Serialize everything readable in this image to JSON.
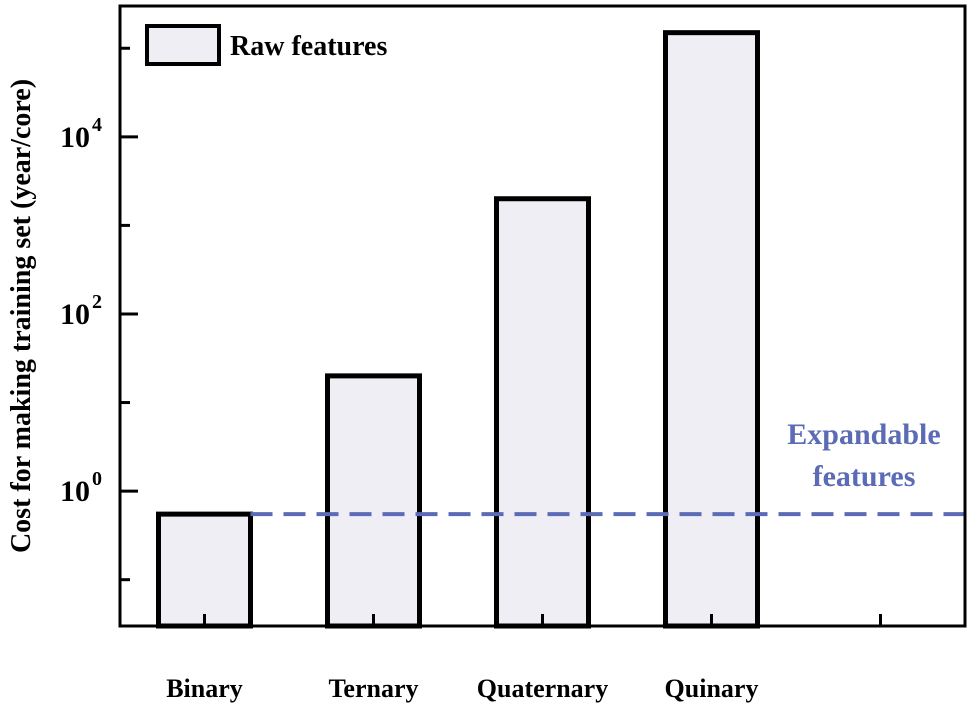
{
  "chart_data": {
    "type": "bar",
    "ylabel": "Cost for making training set (year/core)",
    "xlabel": "",
    "yscale": "log",
    "ylim": [
      0.03,
      300000
    ],
    "categories": [
      "Binary",
      "Ternary",
      "Quaternary",
      "Quinary"
    ],
    "series": [
      {
        "name": "Raw features",
        "values": [
          0.55,
          20,
          2000,
          150000
        ]
      }
    ],
    "x_slots": 5,
    "y_major_ticks": [
      {
        "value": 1,
        "base": "10",
        "exp": "0"
      },
      {
        "value": 100,
        "base": "10",
        "exp": "2"
      },
      {
        "value": 10000,
        "base": "10",
        "exp": "4"
      }
    ],
    "y_minor_ticks": [
      0.1,
      10,
      1000,
      100000
    ],
    "reference_line": {
      "value": 0.55,
      "style": "dashed",
      "color": "#5b6bb5",
      "label_lines": [
        "Expandable",
        "features"
      ]
    },
    "legend": {
      "position": "top-left",
      "label": "Raw features"
    },
    "bar_fill": "#efeef5",
    "bar_stroke": "#000000",
    "grid": false
  }
}
